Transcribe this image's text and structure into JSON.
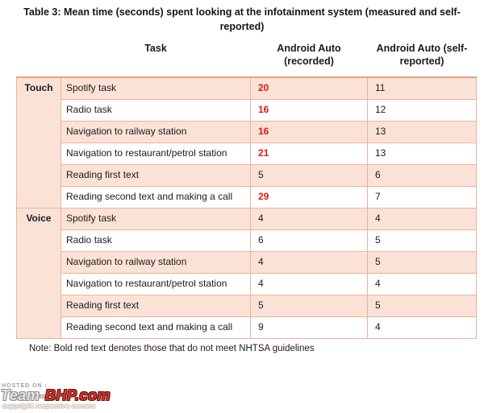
{
  "title": "Table 3: Mean time (seconds) spent looking at the infotainment system (measured and self-reported)",
  "table": {
    "columns": [
      "Task",
      "Android Auto (recorded)",
      "Android Auto (self-reported)"
    ],
    "sections": [
      {
        "label": "Touch",
        "rows": [
          {
            "task": "Spotify task",
            "recorded": "20",
            "recorded_red": true,
            "self_reported": "11"
          },
          {
            "task": "Radio task",
            "recorded": "16",
            "recorded_red": true,
            "self_reported": "12"
          },
          {
            "task": "Navigation to railway station",
            "recorded": "16",
            "recorded_red": true,
            "self_reported": "13"
          },
          {
            "task": "Navigation to restaurant/petrol station",
            "recorded": "21",
            "recorded_red": true,
            "self_reported": "13"
          },
          {
            "task": "Reading first text",
            "recorded": "5",
            "recorded_red": false,
            "self_reported": "6"
          },
          {
            "task": "Reading second text and making a call",
            "recorded": "29",
            "recorded_red": true,
            "self_reported": "7"
          }
        ]
      },
      {
        "label": "Voice",
        "rows": [
          {
            "task": "Spotify task",
            "recorded": "4",
            "recorded_red": false,
            "self_reported": "4"
          },
          {
            "task": "Radio task",
            "recorded": "6",
            "recorded_red": false,
            "self_reported": "5"
          },
          {
            "task": "Navigation to railway station",
            "recorded": "4",
            "recorded_red": false,
            "self_reported": "5"
          },
          {
            "task": "Navigation to restaurant/petrol station",
            "recorded": "4",
            "recorded_red": false,
            "self_reported": "4"
          },
          {
            "task": "Reading first text",
            "recorded": "5",
            "recorded_red": false,
            "self_reported": "5"
          },
          {
            "task": "Reading second text and making a call",
            "recorded": "9",
            "recorded_red": false,
            "self_reported": "4"
          }
        ]
      }
    ]
  },
  "footnote": "Note: Bold red text denotes those that do not meet NHTSA guidelines",
  "watermark": {
    "hosted_on": "HOSTED ON :",
    "logo_team": "Team-",
    "logo_bhp": "BHP",
    "logo_com": ".com",
    "copyright": "copyright respective owners"
  },
  "colors": {
    "row_pink": "#fbe2d6",
    "border_salmon": "#eeb29a",
    "highlight_red": "#e01a1a",
    "text_black": "#1b1b1b"
  }
}
